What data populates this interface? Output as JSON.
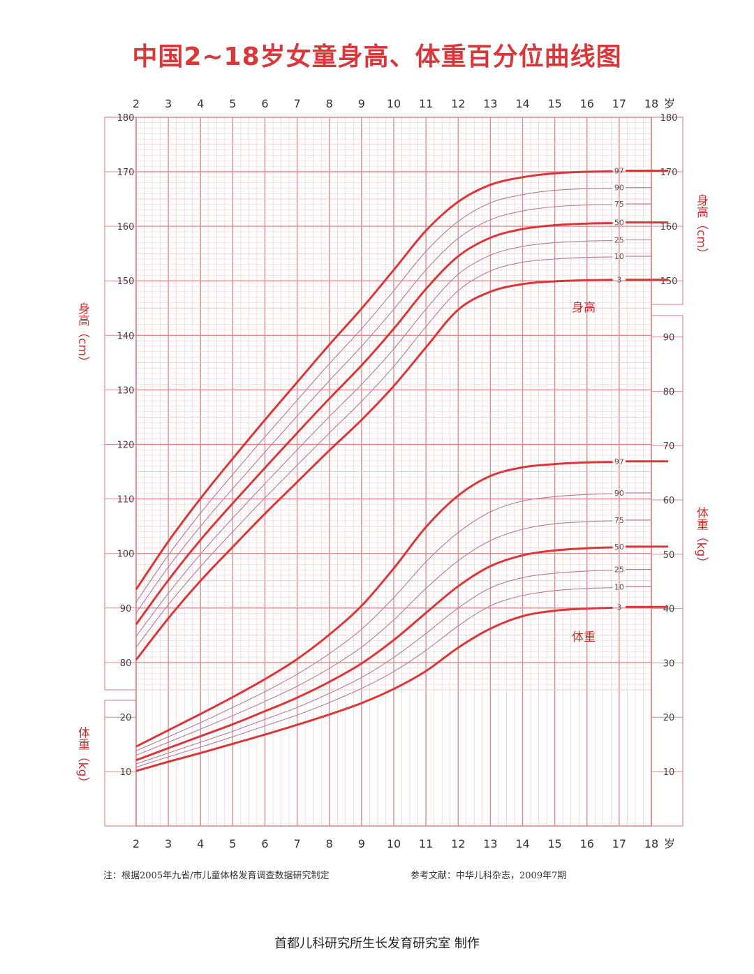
{
  "title": "中国2~18岁女童身高、体重百分位曲线图",
  "axis_labels": {
    "height_left": "身高（cm）",
    "weight_left": "体重（kg）",
    "height_right": "身高（cm）",
    "weight_right": "体重（kg）",
    "age_unit": "岁"
  },
  "inline_labels": {
    "height": "身高",
    "weight": "体重"
  },
  "footnote_left": "注：根据2005年九省/市儿童体格发育调查数据研究制定",
  "footnote_right": "参考文献：中华儿科杂志，2009年7期",
  "credit": "首都儿科研究所生长发育研究室  制作",
  "colors": {
    "grid_major": "#e08a8a",
    "grid_minor": "#f1c3c3",
    "main_curve": "#d9383a",
    "minor_curve": "#b47a9c",
    "title": "#d9383a"
  },
  "chart_data": [
    {
      "type": "line",
      "name": "身高",
      "ylabel": "身高（cm）",
      "x": [
        2,
        3,
        4,
        5,
        6,
        7,
        8,
        9,
        10,
        11,
        12,
        13,
        14,
        15,
        16,
        17,
        18
      ],
      "xlim": [
        2,
        18
      ],
      "ylim": [
        75,
        180
      ],
      "yticks": [
        80,
        90,
        100,
        110,
        120,
        130,
        140,
        150,
        160,
        170,
        180
      ],
      "yticks_right": [
        150,
        160,
        170,
        180
      ],
      "series": [
        {
          "name": "97",
          "values": [
            93.4,
            102.2,
            110.1,
            117.4,
            124.5,
            131.4,
            138.3,
            144.9,
            152.0,
            159.2,
            164.5,
            167.6,
            169.0,
            169.7,
            170.0,
            170.1,
            170.2
          ]
        },
        {
          "name": "90",
          "values": [
            91.1,
            99.7,
            107.4,
            114.5,
            121.4,
            128.1,
            134.8,
            141.2,
            148.2,
            155.4,
            160.9,
            164.3,
            165.8,
            166.6,
            166.9,
            167.0,
            167.1
          ]
        },
        {
          "name": "75",
          "values": [
            89.1,
            97.5,
            105.0,
            111.9,
            118.6,
            125.2,
            131.7,
            138.0,
            144.8,
            152.0,
            157.8,
            161.2,
            162.8,
            163.6,
            163.9,
            164.0,
            164.1
          ]
        },
        {
          "name": "50",
          "values": [
            87.0,
            95.1,
            102.5,
            109.2,
            115.7,
            122.1,
            128.4,
            134.5,
            141.2,
            148.5,
            154.5,
            157.9,
            159.5,
            160.2,
            160.5,
            160.6,
            160.7
          ]
        },
        {
          "name": "25",
          "values": [
            84.8,
            92.7,
            99.9,
            106.5,
            112.8,
            119.0,
            125.1,
            131.0,
            137.5,
            144.8,
            151.2,
            154.7,
            156.3,
            157.0,
            157.3,
            157.4,
            157.5
          ]
        },
        {
          "name": "10",
          "values": [
            82.8,
            90.6,
            97.6,
            104.0,
            110.2,
            116.2,
            122.1,
            127.9,
            134.3,
            141.6,
            148.2,
            151.8,
            153.4,
            154.0,
            154.3,
            154.4,
            154.5
          ]
        },
        {
          "name": "3",
          "values": [
            80.5,
            88.1,
            95.0,
            101.2,
            107.3,
            113.1,
            118.9,
            124.5,
            130.7,
            137.8,
            144.7,
            148.0,
            149.4,
            149.9,
            150.1,
            150.2,
            150.2
          ]
        }
      ]
    },
    {
      "type": "line",
      "name": "体重",
      "ylabel": "体重（kg）",
      "x": [
        2,
        3,
        4,
        5,
        6,
        7,
        8,
        9,
        10,
        11,
        12,
        13,
        14,
        15,
        16,
        17,
        18
      ],
      "xlim": [
        2,
        18
      ],
      "ylim": [
        0,
        95
      ],
      "yticks_left": [
        10,
        20
      ],
      "yticks_right": [
        10,
        20,
        30,
        40,
        50,
        60,
        70,
        80,
        90
      ],
      "series": [
        {
          "name": "97",
          "values": [
            14.6,
            17.6,
            20.6,
            23.7,
            27.0,
            30.7,
            35.2,
            40.5,
            47.4,
            55.0,
            60.8,
            64.4,
            66.0,
            66.6,
            66.9,
            67.0,
            67.1
          ]
        },
        {
          "name": "90",
          "values": [
            13.8,
            16.4,
            19.0,
            21.8,
            24.7,
            27.9,
            31.7,
            36.2,
            42.0,
            48.6,
            54.0,
            57.8,
            59.8,
            60.6,
            61.0,
            61.2,
            61.3
          ]
        },
        {
          "name": "75",
          "values": [
            13.0,
            15.4,
            17.8,
            20.3,
            22.9,
            25.7,
            29.0,
            32.9,
            37.9,
            43.7,
            48.8,
            52.5,
            54.6,
            55.6,
            56.0,
            56.2,
            56.3
          ]
        },
        {
          "name": "50",
          "values": [
            12.1,
            14.3,
            16.5,
            18.7,
            21.1,
            23.6,
            26.5,
            29.9,
            34.2,
            39.2,
            44.1,
            47.8,
            49.8,
            50.7,
            51.1,
            51.3,
            51.4
          ]
        },
        {
          "name": "25",
          "values": [
            11.4,
            13.4,
            15.4,
            17.4,
            19.6,
            21.8,
            24.4,
            27.3,
            31.0,
            35.4,
            40.1,
            43.8,
            45.7,
            46.5,
            46.9,
            47.1,
            47.2
          ]
        },
        {
          "name": "10",
          "values": [
            10.8,
            12.7,
            14.5,
            16.4,
            18.4,
            20.4,
            22.7,
            25.3,
            28.4,
            32.3,
            36.8,
            40.5,
            42.4,
            43.3,
            43.7,
            43.9,
            44.0
          ]
        },
        {
          "name": "3",
          "values": [
            10.1,
            11.8,
            13.4,
            15.1,
            16.8,
            18.6,
            20.5,
            22.6,
            25.2,
            28.5,
            32.8,
            36.3,
            38.6,
            39.6,
            40.0,
            40.2,
            40.3
          ]
        }
      ]
    }
  ]
}
